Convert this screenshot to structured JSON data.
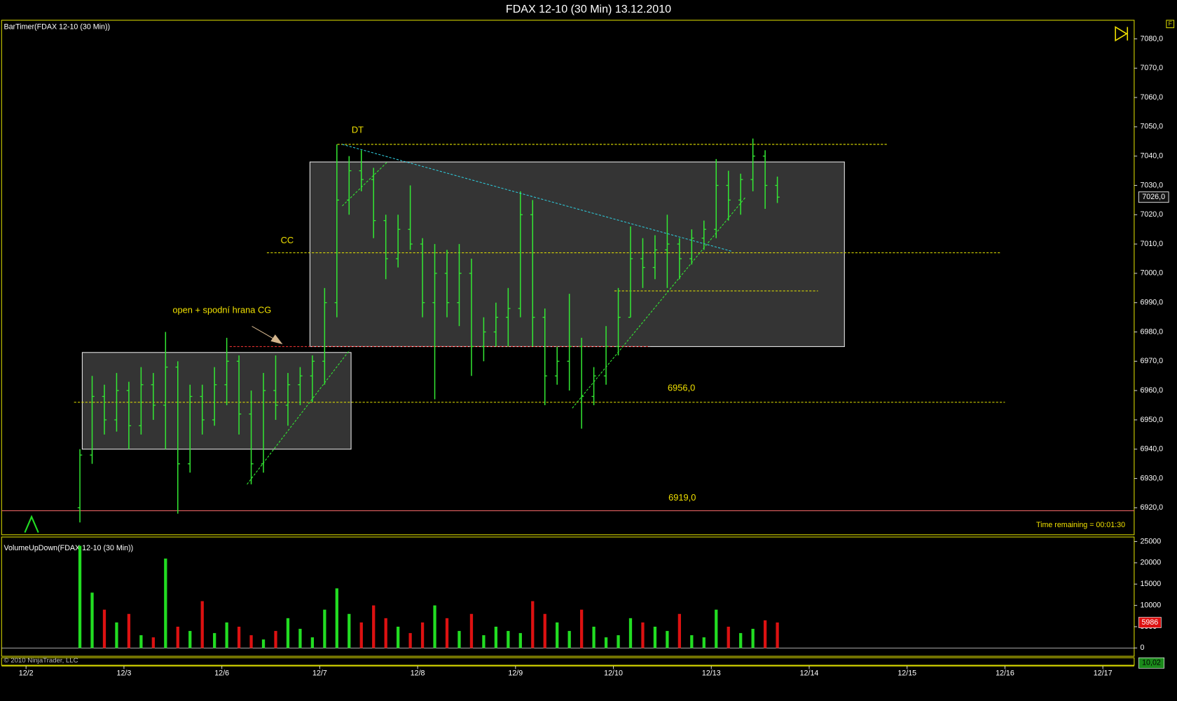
{
  "chart_data": [
    {
      "type": "ohlc",
      "title": "FDAX 12-10 (30 Min)  13.12.2010",
      "indicator_label": "BarTimer(FDAX 12-10 (30 Min))",
      "timer_text": "Time remaining = 00:01:30",
      "color": "#33e833",
      "x": [
        0.55,
        0.675,
        0.8,
        0.925,
        1.05,
        1.175,
        1.3,
        1.425,
        1.55,
        1.675,
        1.8,
        1.925,
        2.05,
        2.175,
        2.3,
        2.425,
        2.55,
        2.675,
        2.8,
        2.925,
        3.05,
        3.175,
        3.3,
        3.425,
        3.55,
        3.675,
        3.8,
        3.925,
        4.05,
        4.175,
        4.3,
        4.425,
        4.55,
        4.675,
        4.8,
        4.925,
        5.05,
        5.175,
        5.3,
        5.425,
        5.55,
        5.675,
        5.8,
        5.925,
        6.05,
        6.175,
        6.3,
        6.425,
        6.55,
        6.675,
        6.8,
        6.925,
        7.05,
        7.175,
        7.3,
        7.425,
        7.55,
        7.675
      ],
      "open": [
        6920,
        6938,
        6958,
        6950,
        6960,
        6948,
        6962,
        6955,
        6968,
        6935,
        6958,
        6950,
        6962,
        6970,
        6952,
        6935,
        6960,
        6955,
        6962,
        6965,
        6970,
        6990,
        7025,
        7035,
        7032,
        7018,
        7005,
        7015,
        7010,
        6990,
        7000,
        6990,
        7000,
        6975,
        6980,
        6985,
        6988,
        7020,
        6985,
        6965,
        6970,
        6975,
        6958,
        6965,
        6975,
        6985,
        7005,
        7002,
        7008,
        7010,
        7005,
        7012,
        7015,
        7030,
        7025,
        7032,
        7040,
        7030
      ],
      "high": [
        6940,
        6965,
        6962,
        6966,
        6963,
        6968,
        6966,
        6980,
        6970,
        6962,
        6962,
        6968,
        6978,
        6972,
        6960,
        6966,
        6972,
        6966,
        6968,
        6972,
        6995,
        7044,
        7040,
        7042,
        7036,
        7020,
        7020,
        7030,
        7012,
        7010,
        7008,
        7010,
        7005,
        6985,
        6990,
        6995,
        7028,
        7025,
        6988,
        6975,
        6993,
        6978,
        6968,
        6982,
        6995,
        7016,
        7012,
        7013,
        7020,
        7012,
        7015,
        7018,
        7039,
        7035,
        7034,
        7046,
        7042,
        7033
      ],
      "low": [
        6915,
        6935,
        6945,
        6946,
        6940,
        6945,
        6950,
        6940,
        6918,
        6932,
        6945,
        6948,
        6955,
        6945,
        6928,
        6932,
        6950,
        6948,
        6955,
        6956,
        6962,
        6985,
        7020,
        7028,
        7012,
        6998,
        7002,
        7008,
        6985,
        6957,
        6985,
        6982,
        6965,
        6970,
        6975,
        6975,
        6985,
        6975,
        6955,
        6962,
        6960,
        6947,
        6955,
        6962,
        6972,
        6985,
        6995,
        6998,
        6995,
        6998,
        7003,
        7008,
        7012,
        7018,
        7020,
        7028,
        7022,
        7024
      ],
      "close": [
        6938,
        6958,
        6950,
        6960,
        6948,
        6962,
        6955,
        6968,
        6935,
        6958,
        6950,
        6962,
        6970,
        6952,
        6935,
        6960,
        6955,
        6962,
        6965,
        6970,
        6990,
        7025,
        7035,
        7032,
        7018,
        7005,
        7015,
        7010,
        6990,
        7000,
        6990,
        7000,
        6975,
        6980,
        6985,
        6988,
        7020,
        6985,
        6965,
        6970,
        6975,
        6958,
        6965,
        6975,
        6985,
        7005,
        7002,
        7008,
        7010,
        7005,
        7012,
        7015,
        7030,
        7025,
        7032,
        7040,
        7030,
        7026
      ],
      "xlim": [
        -0.25,
        11.32
      ],
      "xticks": [
        {
          "value": 0,
          "label": "12/2"
        },
        {
          "value": 1,
          "label": "12/3"
        },
        {
          "value": 2,
          "label": "12/6"
        },
        {
          "value": 3,
          "label": "12/7"
        },
        {
          "value": 4,
          "label": "12/8"
        },
        {
          "value": 5,
          "label": "12/9"
        },
        {
          "value": 6,
          "label": "12/10"
        },
        {
          "value": 7,
          "label": "12/13"
        },
        {
          "value": 8,
          "label": "12/14"
        },
        {
          "value": 9,
          "label": "12/15"
        },
        {
          "value": 10,
          "label": "12/16"
        },
        {
          "value": 11,
          "label": "12/17"
        }
      ],
      "ylim": [
        6910.8,
        7086.1
      ],
      "yticks": [
        {
          "value": 6920,
          "label": "6920,0"
        },
        {
          "value": 6930,
          "label": "6930,0"
        },
        {
          "value": 6940,
          "label": "6940,0"
        },
        {
          "value": 6950,
          "label": "6950,0"
        },
        {
          "value": 6960,
          "label": "6960,0"
        },
        {
          "value": 6970,
          "label": "6970,0"
        },
        {
          "value": 6980,
          "label": "6980,0"
        },
        {
          "value": 6990,
          "label": "6990,0"
        },
        {
          "value": 7000,
          "label": "7000,0"
        },
        {
          "value": 7010,
          "label": "7010,0"
        },
        {
          "value": 7020,
          "label": "7020,0"
        },
        {
          "value": 7030,
          "label": "7030,0"
        },
        {
          "value": 7040,
          "label": "7040,0"
        },
        {
          "value": 7050,
          "label": "7050,0"
        },
        {
          "value": 7060,
          "label": "7060,0"
        },
        {
          "value": 7070,
          "label": "7070,0"
        },
        {
          "value": 7080,
          "label": "7080,0"
        }
      ],
      "last_price": {
        "value": 7026,
        "label": "7026,0"
      },
      "boxes": [
        {
          "x": [
            0.574,
            3.32
          ],
          "y": [
            6940,
            6973
          ]
        },
        {
          "x": [
            2.9,
            8.36
          ],
          "y": [
            6975,
            7038
          ]
        }
      ],
      "levels": [
        {
          "value": 7044,
          "x": [
            3.18,
            8.8
          ],
          "color": "#e6e600",
          "dashed": true
        },
        {
          "value": 7007,
          "x": [
            2.46,
            9.96
          ],
          "color": "#e6e600",
          "dashed": true
        },
        {
          "value": 6994,
          "x": [
            6.01,
            8.09
          ],
          "color": "#e6e600",
          "dashed": true
        },
        {
          "value": 6975,
          "x": [
            2.08,
            6.37
          ],
          "color": "#e03030",
          "dashed": true
        },
        {
          "value": 6956,
          "x": [
            0.49,
            10.0
          ],
          "color": "#e6e600",
          "dashed": true
        },
        {
          "value": 6919,
          "x": [
            -0.25,
            11.32
          ],
          "color": "#e06060",
          "dashed": false
        }
      ],
      "trendlines": [
        {
          "x": [
            2.257,
            3.305
          ],
          "y": [
            6928,
            6973.8
          ],
          "color": "#33e833"
        },
        {
          "x": [
            3.23,
            3.69
          ],
          "y": [
            7023,
            7038
          ],
          "color": "#33e833"
        },
        {
          "x": [
            5.58,
            7.35
          ],
          "y": [
            6954,
            7026
          ],
          "color": "#33e833"
        },
        {
          "x": [
            3.23,
            7.21
          ],
          "y": [
            7044,
            7007.5
          ],
          "color": "#2ec8d8"
        }
      ],
      "annotations": [
        "DT",
        "CC",
        "open + spodní hrana CG",
        "6956,0",
        "6919,0"
      ]
    },
    {
      "type": "volume",
      "indicator_label": "VolumeUpDown(FDAX 12-10 (30 Min))",
      "up_color": "#22dd22",
      "down_color": "#dd1111",
      "values": [
        24000,
        13000,
        9000,
        6000,
        8000,
        3000,
        2500,
        21000,
        5000,
        4000,
        11000,
        3500,
        6000,
        5000,
        3000,
        2000,
        4000,
        7000,
        4500,
        2500,
        9000,
        14000,
        8000,
        6000,
        10000,
        7000,
        5000,
        3500,
        6000,
        10000,
        7000,
        4000,
        8000,
        3000,
        5000,
        4000,
        3500,
        11000,
        8000,
        6000,
        4000,
        9000,
        5000,
        2500,
        3000,
        7000,
        6000,
        5000,
        4000,
        8000,
        3000,
        2500,
        9000,
        5000,
        3500,
        4500,
        6500,
        5986
      ],
      "ylim": [
        -1940,
        26060
      ],
      "yticks": [
        0,
        5000,
        10000,
        15000,
        20000,
        25000
      ]
    }
  ],
  "footer": {
    "copyright": "© 2010 NinjaTrader, LLC",
    "strip_value": "10,02"
  }
}
